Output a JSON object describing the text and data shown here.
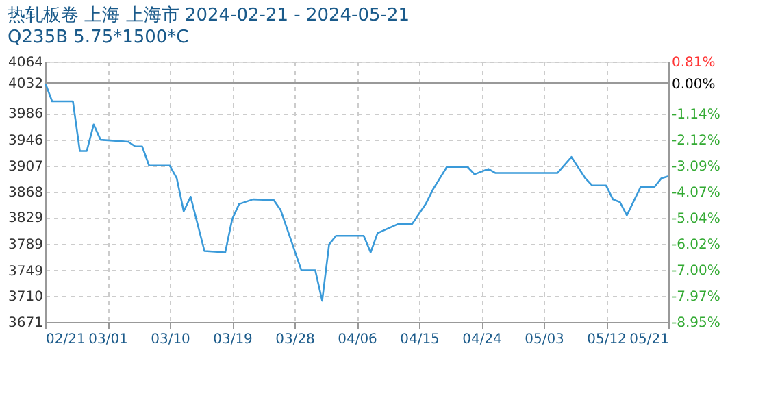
{
  "chart_data": {
    "type": "line",
    "title": "热轧板卷 上海 上海市 2024-02-21 - 2024-05-21",
    "subtitle": "Q235B 5.75*1500*C",
    "x": [
      "2024-02-21",
      "2024-02-22",
      "2024-02-25",
      "2024-02-26",
      "2024-02-27",
      "2024-02-28",
      "2024-02-29",
      "2024-03-04",
      "2024-03-05",
      "2024-03-06",
      "2024-03-07",
      "2024-03-10",
      "2024-03-11",
      "2024-03-12",
      "2024-03-13",
      "2024-03-15",
      "2024-03-18",
      "2024-03-19",
      "2024-03-20",
      "2024-03-22",
      "2024-03-25",
      "2024-03-26",
      "2024-03-29",
      "2024-03-31",
      "2024-04-01",
      "2024-04-02",
      "2024-04-03",
      "2024-04-07",
      "2024-04-08",
      "2024-04-09",
      "2024-04-12",
      "2024-04-14",
      "2024-04-16",
      "2024-04-17",
      "2024-04-19",
      "2024-04-22",
      "2024-04-23",
      "2024-04-25",
      "2024-04-26",
      "2024-05-05",
      "2024-05-07",
      "2024-05-09",
      "2024-05-10",
      "2024-05-12",
      "2024-05-13",
      "2024-05-14",
      "2024-05-15",
      "2024-05-17",
      "2024-05-19",
      "2024-05-20",
      "2024-05-21"
    ],
    "series": [
      {
        "color": "#3a9ad9",
        "values": [
          4032,
          4004,
          4004,
          3929,
          3929,
          3969,
          3946,
          3943,
          3936,
          3936,
          3907,
          3907,
          3888,
          3838,
          3860,
          3778,
          3776,
          3826,
          3849,
          3856,
          3855,
          3840,
          3749,
          3749,
          3703,
          3788,
          3801,
          3801,
          3776,
          3805,
          3819,
          3819,
          3850,
          3871,
          3905,
          3905,
          3894,
          3902,
          3896,
          3896,
          3920,
          3888,
          3877,
          3877,
          3856,
          3852,
          3832,
          3875,
          3875,
          3888,
          3891
        ]
      }
    ],
    "xlim": [
      "2024-02-21",
      "2024-05-21"
    ],
    "xticks": [
      {
        "value": "2024-02-21",
        "label": "02/21"
      },
      {
        "value": "2024-03-01",
        "label": "03/01"
      },
      {
        "value": "2024-03-10",
        "label": "03/10"
      },
      {
        "value": "2024-03-19",
        "label": "03/19"
      },
      {
        "value": "2024-03-28",
        "label": "03/28"
      },
      {
        "value": "2024-04-06",
        "label": "04/06"
      },
      {
        "value": "2024-04-15",
        "label": "04/15"
      },
      {
        "value": "2024-04-24",
        "label": "04/24"
      },
      {
        "value": "2024-05-03",
        "label": "05/03"
      },
      {
        "value": "2024-05-12",
        "label": "05/12"
      },
      {
        "value": "2024-05-21",
        "label": "05/21"
      }
    ],
    "ylim": [
      3671,
      4064
    ],
    "yticks": [
      4064,
      4032,
      3986,
      3946,
      3907,
      3868,
      3829,
      3789,
      3749,
      3710,
      3671
    ],
    "y2lim": [
      -8.95,
      0.81
    ],
    "y2ticks": [
      {
        "value": 0.81,
        "label": "0.81%"
      },
      {
        "value": 0,
        "label": "0.00%"
      },
      {
        "value": -1.14,
        "label": "-1.14%"
      },
      {
        "value": -2.12,
        "label": "-2.12%"
      },
      {
        "value": -3.09,
        "label": "-3.09%"
      },
      {
        "value": -4.07,
        "label": "-4.07%"
      },
      {
        "value": -5.04,
        "label": "-5.04%"
      },
      {
        "value": -6.02,
        "label": "-6.02%"
      },
      {
        "value": -7.0,
        "label": "-7.00%"
      },
      {
        "value": -7.97,
        "label": "-7.97%"
      },
      {
        "value": -8.95,
        "label": "-8.95%"
      }
    ],
    "ref_lines": [
      {
        "axis": "y2",
        "value": 0,
        "color": "#999999"
      }
    ],
    "grid": true,
    "marker": "none",
    "line_style": "solid"
  }
}
